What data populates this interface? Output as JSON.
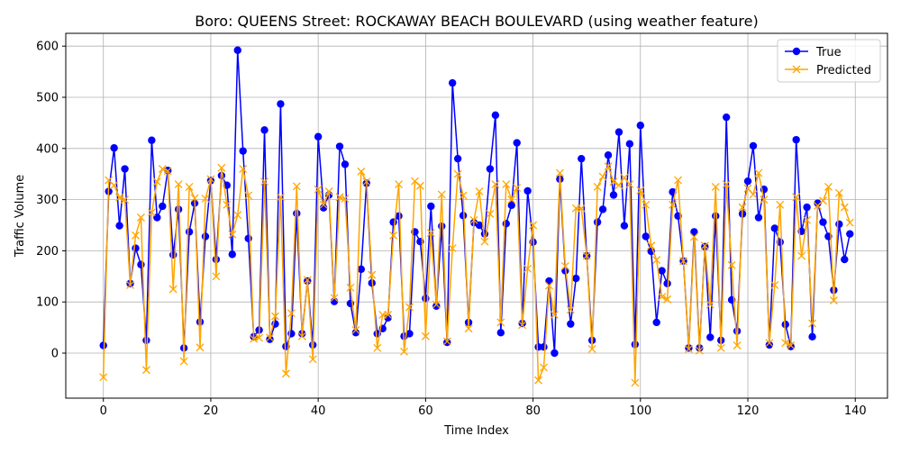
{
  "chart_data": {
    "type": "line",
    "title": "Boro: QUEENS Street: ROCKAWAY BEACH BOULEVARD (using weather feature)",
    "xlabel": "Time Index",
    "ylabel": "Traffic Volume",
    "xlim": [
      -7,
      146
    ],
    "ylim": [
      -88,
      625
    ],
    "xticks": [
      0,
      20,
      40,
      60,
      80,
      100,
      120,
      140
    ],
    "yticks": [
      0,
      100,
      200,
      300,
      400,
      500,
      600
    ],
    "grid": true,
    "legend_position": "top-right",
    "x": [
      0,
      1,
      2,
      3,
      4,
      5,
      6,
      7,
      8,
      9,
      10,
      11,
      12,
      13,
      14,
      15,
      16,
      17,
      18,
      19,
      20,
      21,
      22,
      23,
      24,
      25,
      26,
      27,
      28,
      29,
      30,
      31,
      32,
      33,
      34,
      35,
      36,
      37,
      38,
      39,
      40,
      41,
      42,
      43,
      44,
      45,
      46,
      47,
      48,
      49,
      50,
      51,
      52,
      53,
      54,
      55,
      56,
      57,
      58,
      59,
      60,
      61,
      62,
      63,
      64,
      65,
      66,
      67,
      68,
      69,
      70,
      71,
      72,
      73,
      74,
      75,
      76,
      77,
      78,
      79,
      80,
      81,
      82,
      83,
      84,
      85,
      86,
      87,
      88,
      89,
      90,
      91,
      92,
      93,
      94,
      95,
      96,
      97,
      98,
      99,
      100,
      101,
      102,
      103,
      104,
      105,
      106,
      107,
      108,
      109,
      110,
      111,
      112,
      113,
      114,
      115,
      116,
      117,
      118,
      119,
      120,
      121,
      122,
      123,
      124,
      125,
      126,
      127,
      128,
      129,
      130,
      131,
      132,
      133,
      134,
      135,
      136,
      137,
      138,
      139
    ],
    "series": [
      {
        "name": "True",
        "color": "#0000ff",
        "marker": "circle",
        "values": [
          15,
          316,
          401,
          249,
          360,
          136,
          205,
          173,
          25,
          416,
          265,
          287,
          357,
          192,
          281,
          10,
          237,
          293,
          61,
          228,
          337,
          183,
          347,
          328,
          193,
          592,
          395,
          224,
          32,
          45,
          436,
          27,
          57,
          487,
          13,
          38,
          273,
          38,
          141,
          16,
          423,
          284,
          309,
          101,
          404,
          369,
          97,
          40,
          164,
          332,
          137,
          38,
          48,
          69,
          256,
          268,
          33,
          38,
          237,
          218,
          107,
          287,
          92,
          248,
          21,
          528,
          380,
          269,
          60,
          255,
          250,
          233,
          360,
          465,
          40,
          253,
          289,
          411,
          58,
          317,
          217,
          12,
          12,
          141,
          0,
          340,
          161,
          57,
          146,
          380,
          190,
          25,
          256,
          281,
          387,
          309,
          432,
          249,
          409,
          17,
          445,
          228,
          199,
          60,
          161,
          136,
          315,
          268,
          180,
          10,
          237,
          10,
          208,
          31,
          268,
          25,
          461,
          104,
          43,
          272,
          336,
          405,
          265,
          320,
          16,
          244,
          217,
          56,
          13,
          417,
          238,
          285,
          32,
          293,
          256,
          228,
          123,
          252,
          183,
          233
        ]
      },
      {
        "name": "Predicted",
        "color": "#ffa500",
        "marker": "x",
        "values": [
          -47,
          338,
          328,
          304,
          300,
          133,
          230,
          265,
          -33,
          275,
          335,
          360,
          356,
          125,
          330,
          -16,
          325,
          303,
          11,
          302,
          340,
          150,
          362,
          290,
          232,
          270,
          360,
          308,
          28,
          30,
          335,
          30,
          72,
          305,
          -40,
          78,
          326,
          33,
          143,
          -12,
          320,
          290,
          316,
          108,
          305,
          302,
          128,
          45,
          355,
          335,
          153,
          10,
          75,
          75,
          230,
          330,
          3,
          90,
          336,
          327,
          33,
          235,
          95,
          310,
          23,
          205,
          350,
          308,
          48,
          260,
          316,
          218,
          272,
          330,
          60,
          330,
          300,
          323,
          55,
          165,
          250,
          -53,
          -28,
          132,
          75,
          352,
          170,
          85,
          283,
          283,
          190,
          8,
          325,
          345,
          365,
          335,
          328,
          343,
          330,
          -58,
          318,
          290,
          210,
          182,
          110,
          105,
          290,
          338,
          180,
          8,
          227,
          5,
          210,
          95,
          325,
          10,
          330,
          172,
          15,
          285,
          322,
          310,
          352,
          300,
          20,
          133,
          290,
          20,
          15,
          305,
          190,
          260,
          58,
          288,
          298,
          325,
          103,
          313,
          285,
          255
        ]
      }
    ]
  }
}
